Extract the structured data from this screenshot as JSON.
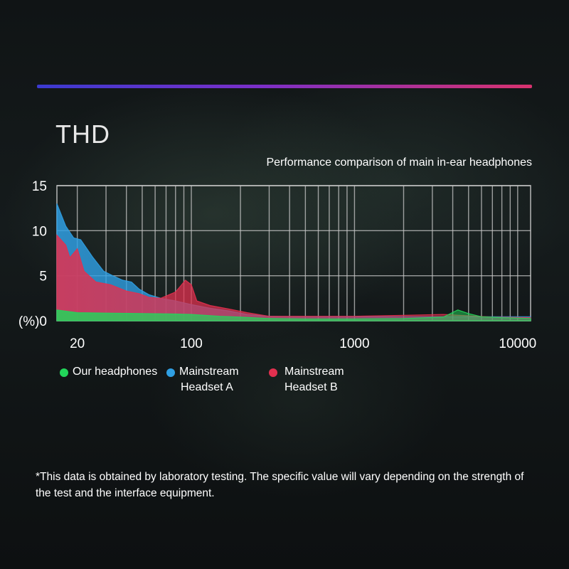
{
  "header": {
    "title": "THD",
    "subtitle": "Performance comparison of main in-ear headphones"
  },
  "colors": {
    "accent_start": "#3b3ad0",
    "accent_end": "#d8326e",
    "our": "#22d65a",
    "a": "#2f9fe3",
    "b": "#e2304f",
    "grid": "#c8c8c8"
  },
  "legend": [
    {
      "label": "Our headphones",
      "color": "#22d65a"
    },
    {
      "label": "Mainstream Headset A",
      "lines": [
        "Mainstream",
        "Headset A"
      ],
      "color": "#2f9fe3"
    },
    {
      "label": "Mainstream Headset B",
      "lines": [
        "Mainstream",
        "Headset B"
      ],
      "color": "#e2304f"
    }
  ],
  "chart_data": {
    "type": "area",
    "ylabel": "(%)",
    "xscale": "log",
    "xlim": [
      15,
      12000
    ],
    "ylim": [
      0,
      15
    ],
    "yticks": [
      0,
      5,
      10,
      15
    ],
    "ytick_labels": [
      "(%)0",
      "5",
      "10",
      "15"
    ],
    "xticks": [
      20,
      100,
      1000,
      10000
    ],
    "xtick_labels": [
      "20",
      "100",
      "1000",
      "10000"
    ],
    "grid": true,
    "legend_position": "bottom-left",
    "series": [
      {
        "name": "Mainstream Headset A",
        "color": "#2f9fe3",
        "points": [
          [
            15,
            13
          ],
          [
            17,
            10.5
          ],
          [
            19,
            9.2
          ],
          [
            21,
            9.0
          ],
          [
            25,
            7.0
          ],
          [
            29,
            5.5
          ],
          [
            33,
            5.0
          ],
          [
            38,
            4.5
          ],
          [
            43,
            4.3
          ],
          [
            48,
            3.5
          ],
          [
            55,
            2.9
          ],
          [
            65,
            2.5
          ],
          [
            80,
            2.2
          ],
          [
            100,
            1.8
          ],
          [
            130,
            1.4
          ],
          [
            170,
            1.1
          ],
          [
            220,
            0.7
          ],
          [
            300,
            0.5
          ],
          [
            500,
            0.45
          ],
          [
            1000,
            0.45
          ],
          [
            2000,
            0.45
          ],
          [
            4000,
            0.45
          ],
          [
            8000,
            0.45
          ],
          [
            12000,
            0.45
          ]
        ]
      },
      {
        "name": "Mainstream Headset B",
        "color": "#e2304f",
        "points": [
          [
            15,
            9.5
          ],
          [
            17,
            8.4
          ],
          [
            18,
            7.0
          ],
          [
            20,
            8.0
          ],
          [
            22,
            5.5
          ],
          [
            26,
            4.3
          ],
          [
            32,
            4.0
          ],
          [
            40,
            3.3
          ],
          [
            48,
            3.0
          ],
          [
            55,
            2.6
          ],
          [
            65,
            2.5
          ],
          [
            80,
            3.2
          ],
          [
            92,
            4.5
          ],
          [
            100,
            4.0
          ],
          [
            108,
            2.2
          ],
          [
            130,
            1.7
          ],
          [
            170,
            1.3
          ],
          [
            220,
            0.9
          ],
          [
            300,
            0.5
          ],
          [
            500,
            0.5
          ],
          [
            1000,
            0.5
          ],
          [
            2000,
            0.6
          ],
          [
            3500,
            0.7
          ],
          [
            5000,
            0.55
          ],
          [
            7000,
            0.4
          ],
          [
            12000,
            0.35
          ]
        ]
      },
      {
        "name": "Our headphones",
        "color": "#22d65a",
        "points": [
          [
            15,
            1.2
          ],
          [
            20,
            0.9
          ],
          [
            30,
            0.85
          ],
          [
            50,
            0.8
          ],
          [
            80,
            0.75
          ],
          [
            100,
            0.7
          ],
          [
            150,
            0.5
          ],
          [
            200,
            0.4
          ],
          [
            300,
            0.25
          ],
          [
            500,
            0.2
          ],
          [
            1000,
            0.2
          ],
          [
            2000,
            0.25
          ],
          [
            3500,
            0.4
          ],
          [
            4300,
            1.2
          ],
          [
            5000,
            0.8
          ],
          [
            6000,
            0.45
          ],
          [
            8000,
            0.35
          ],
          [
            12000,
            0.25
          ]
        ]
      }
    ]
  },
  "footnote": "*This data is obtained by laboratory testing. The specific value will vary depending on the strength of the test and the interface equipment."
}
